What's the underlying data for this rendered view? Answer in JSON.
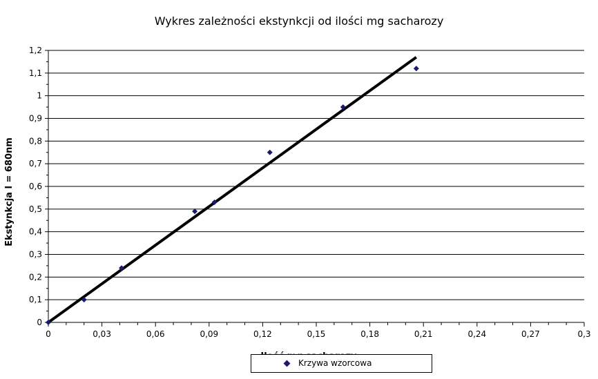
{
  "chart_data": {
    "type": "scatter",
    "title": "Wykres zależności ekstynkcji od ilości mg sacharozy",
    "xlabel": "Ilość mg sacharozy",
    "ylabel": "Ekstynkcja l = 680nm",
    "xlim": [
      0,
      0.3
    ],
    "ylim": [
      0,
      1.2
    ],
    "x_ticks": [
      "0",
      "0,03",
      "0,06",
      "0,09",
      "0,12",
      "0,15",
      "0,18",
      "0,21",
      "0,24",
      "0,27",
      "0,3"
    ],
    "y_ticks": [
      "0",
      "0,1",
      "0,2",
      "0,3",
      "0,4",
      "0,5",
      "0,6",
      "0,7",
      "0,8",
      "0,9",
      "1",
      "1,1",
      "1,2"
    ],
    "grid": "horizontal",
    "legend_position": "bottom",
    "series": [
      {
        "name": "Krzywa wzorcowa",
        "marker": "diamond",
        "color": "#1a1a6e",
        "points": [
          {
            "x": 0,
            "y": 0
          },
          {
            "x": 0.02,
            "y": 0.1
          },
          {
            "x": 0.041,
            "y": 0.24
          },
          {
            "x": 0.082,
            "y": 0.49
          },
          {
            "x": 0.093,
            "y": 0.53
          },
          {
            "x": 0.124,
            "y": 0.75
          },
          {
            "x": 0.165,
            "y": 0.95
          },
          {
            "x": 0.206,
            "y": 1.12
          }
        ]
      }
    ],
    "trendline": {
      "color": "#000000",
      "from": {
        "x": 0,
        "y": 0
      },
      "to": {
        "x": 0.206,
        "y": 1.17
      }
    }
  }
}
